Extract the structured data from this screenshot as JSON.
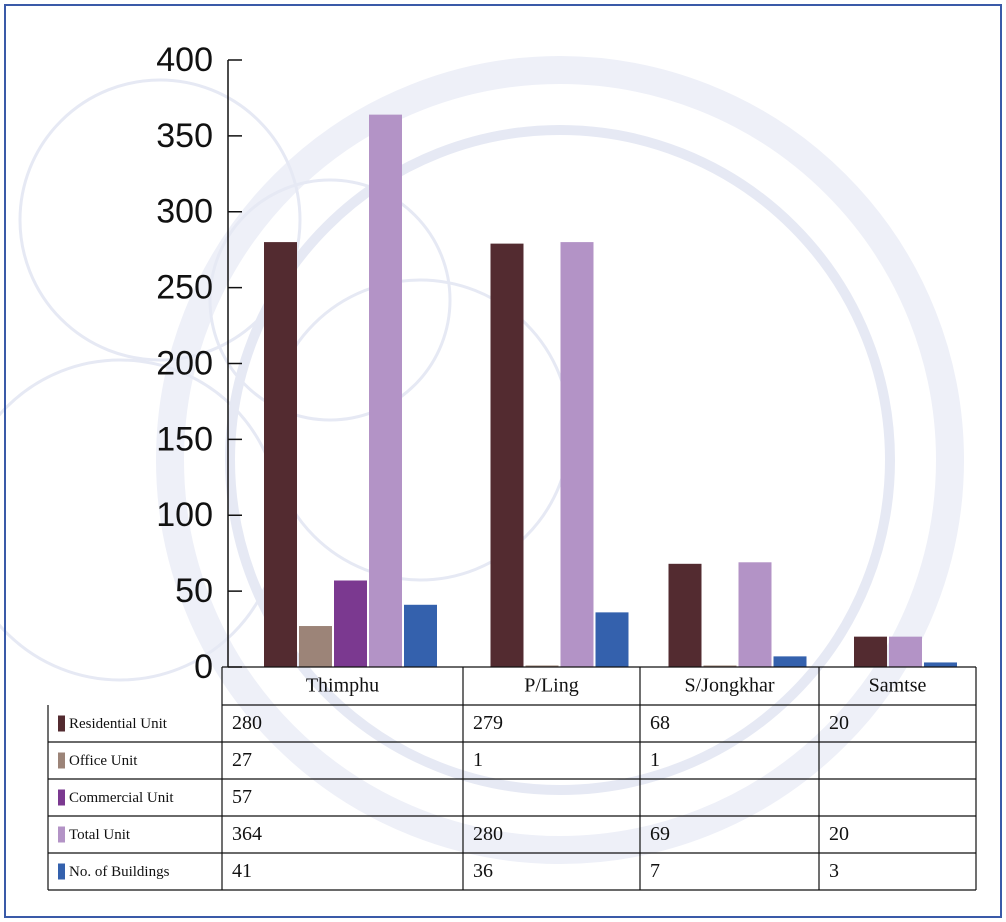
{
  "chart_data": {
    "type": "bar",
    "categories": [
      "Thimphu",
      "P/Ling",
      "S/Jongkhar",
      "Samtse"
    ],
    "series": [
      {
        "name": "Residential Unit",
        "color": "#532b30",
        "values": [
          280,
          279,
          68,
          20
        ]
      },
      {
        "name": "Office Unit",
        "color": "#9c8478",
        "values": [
          27,
          1,
          1,
          null
        ]
      },
      {
        "name": "Commercial Unit",
        "color": "#7b3990",
        "values": [
          57,
          null,
          null,
          null
        ]
      },
      {
        "name": "Total Unit",
        "color": "#b393c6",
        "values": [
          364,
          280,
          69,
          20
        ]
      },
      {
        "name": "No. of Buildings",
        "color": "#3461ad",
        "values": [
          41,
          36,
          7,
          3
        ]
      }
    ],
    "ylim": [
      0,
      400
    ],
    "yticks": [
      0,
      50,
      100,
      150,
      200,
      250,
      300,
      350,
      400
    ],
    "grid": false
  }
}
